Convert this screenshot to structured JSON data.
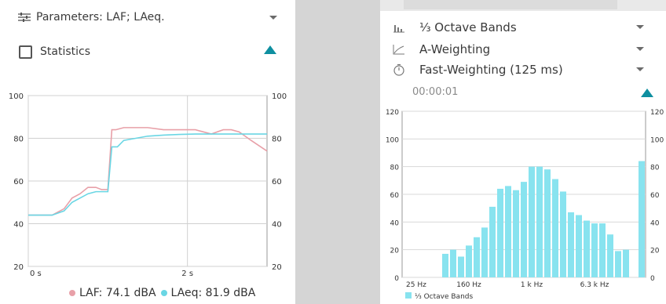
{
  "colors": {
    "laf": "#e8a0a8",
    "laeq": "#6ad6e4",
    "accent": "#0e8fa0",
    "bar": "#88e3ef"
  },
  "left": {
    "parameters_label": "Parameters: LAF; LAeq.",
    "parameters_icon": "sliders-icon",
    "statistics_label": "Statistics",
    "legend_laf": "LAF: 74.1 dBA",
    "legend_laeq": "LAeq: 81.9 dBA"
  },
  "right": {
    "bands_label": "⅓ Octave Bands",
    "bands_icon": "bar-chart-icon",
    "weighting_label": "A-Weighting",
    "weighting_icon": "curve-icon",
    "time_weighting_label": "Fast-Weighting (125 ms)",
    "time_weighting_icon": "timer-icon",
    "elapsed": "00:00:01"
  },
  "chart_data": [
    {
      "type": "line",
      "title": "",
      "xlabel": "",
      "ylabel": "",
      "ylim": [
        20,
        100
      ],
      "x_tick_labels": [
        "0 s",
        "2 s"
      ],
      "y_ticks": [
        20,
        40,
        60,
        80,
        100
      ],
      "grid": true,
      "legend_placement": "bottom",
      "series": [
        {
          "name": "LAF",
          "x": [
            0,
            0.3,
            0.45,
            0.55,
            0.65,
            0.75,
            0.85,
            0.92,
            1.0,
            1.05,
            1.1,
            1.2,
            1.35,
            1.5,
            1.7,
            1.9,
            2.1,
            2.3,
            2.45,
            2.55,
            2.65,
            2.8,
            3.0
          ],
          "values": [
            44,
            44,
            47,
            52,
            54,
            57,
            57,
            56,
            56,
            84,
            84,
            85,
            85,
            85,
            84,
            84,
            84,
            82,
            84,
            84,
            83,
            79,
            74
          ]
        },
        {
          "name": "LAeq",
          "x": [
            0,
            0.3,
            0.45,
            0.55,
            0.65,
            0.75,
            0.85,
            0.95,
            1.0,
            1.05,
            1.12,
            1.2,
            1.35,
            1.5,
            1.7,
            1.9,
            2.1,
            2.3,
            2.5,
            2.7,
            3.0
          ],
          "values": [
            44,
            44,
            46,
            50,
            52,
            54,
            55,
            55,
            55,
            76,
            76,
            79,
            80,
            81,
            81.5,
            81.8,
            82,
            82,
            82,
            82,
            82
          ]
        }
      ]
    },
    {
      "type": "bar",
      "title": "",
      "xlabel": "",
      "ylabel": "",
      "ylim": [
        0,
        120
      ],
      "x_tick_labels": [
        "25 Hz",
        "160 Hz",
        "1 k Hz",
        "6.3 k Hz"
      ],
      "y_ticks": [
        0,
        20,
        40,
        60,
        80,
        100,
        120
      ],
      "grid": true,
      "legend_placement": "bottom-left",
      "series": [
        {
          "name": "⅓ Octave Bands",
          "values": [
            0,
            0,
            0,
            0,
            0,
            17,
            20,
            15,
            23,
            29,
            36,
            51,
            64,
            66,
            63,
            69,
            80,
            80,
            78,
            71,
            62,
            47,
            45,
            41,
            39,
            39,
            31,
            19,
            20,
            0,
            84
          ]
        }
      ]
    }
  ]
}
